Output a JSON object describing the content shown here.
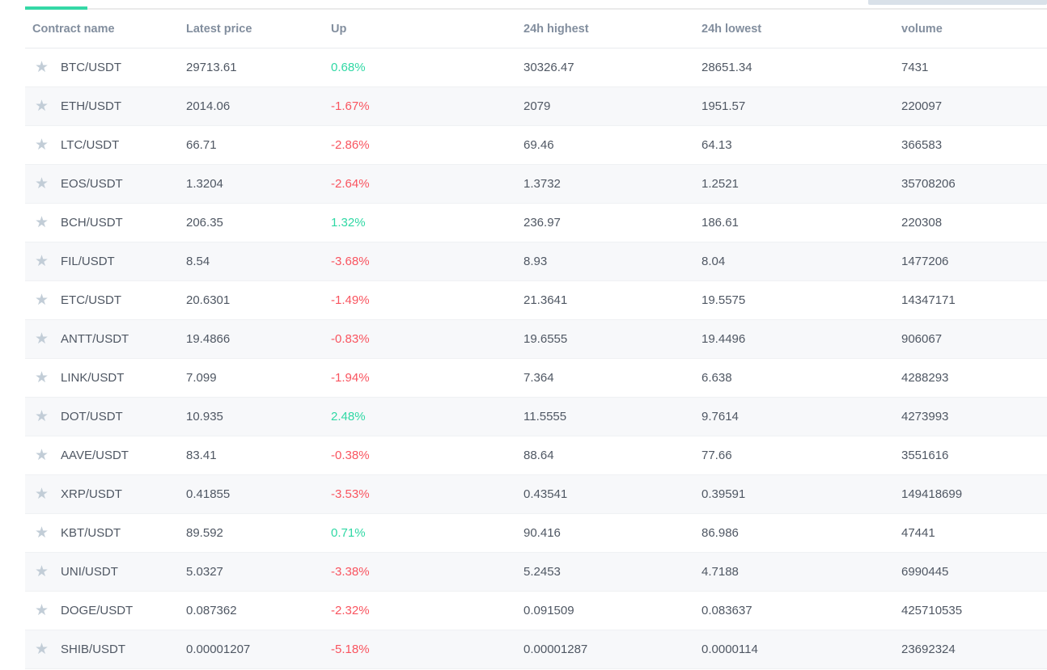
{
  "colors": {
    "accent_green": "#35d8a6",
    "positive_green": "#2fd8a4",
    "negative_red": "#f9545f",
    "star_gray": "#c2cdd7",
    "alt_row_bg": "#f7f8fa"
  },
  "icons": {
    "favorite_star": "★"
  },
  "table": {
    "columns": [
      "Contract name",
      "Latest price",
      "Up",
      "24h highest",
      "24h lowest",
      "volume"
    ],
    "rows": [
      {
        "name": "BTC/USDT",
        "price": "29713.61",
        "change": "0.68%",
        "direction": "up",
        "high": "30326.47",
        "low": "28651.34",
        "volume": "7431"
      },
      {
        "name": "ETH/USDT",
        "price": "2014.06",
        "change": "-1.67%",
        "direction": "down",
        "high": "2079",
        "low": "1951.57",
        "volume": "220097"
      },
      {
        "name": "LTC/USDT",
        "price": "66.71",
        "change": "-2.86%",
        "direction": "down",
        "high": "69.46",
        "low": "64.13",
        "volume": "366583"
      },
      {
        "name": "EOS/USDT",
        "price": "1.3204",
        "change": "-2.64%",
        "direction": "down",
        "high": "1.3732",
        "low": "1.2521",
        "volume": "35708206"
      },
      {
        "name": "BCH/USDT",
        "price": "206.35",
        "change": "1.32%",
        "direction": "up",
        "high": "236.97",
        "low": "186.61",
        "volume": "220308"
      },
      {
        "name": "FIL/USDT",
        "price": "8.54",
        "change": "-3.68%",
        "direction": "down",
        "high": "8.93",
        "low": "8.04",
        "volume": "1477206"
      },
      {
        "name": "ETC/USDT",
        "price": "20.6301",
        "change": "-1.49%",
        "direction": "down",
        "high": "21.3641",
        "low": "19.5575",
        "volume": "14347171"
      },
      {
        "name": "ANTT/USDT",
        "price": "19.4866",
        "change": "-0.83%",
        "direction": "down",
        "high": "19.6555",
        "low": "19.4496",
        "volume": "906067"
      },
      {
        "name": "LINK/USDT",
        "price": "7.099",
        "change": "-1.94%",
        "direction": "down",
        "high": "7.364",
        "low": "6.638",
        "volume": "4288293"
      },
      {
        "name": "DOT/USDT",
        "price": "10.935",
        "change": "2.48%",
        "direction": "up",
        "high": "11.5555",
        "low": "9.7614",
        "volume": "4273993"
      },
      {
        "name": "AAVE/USDT",
        "price": "83.41",
        "change": "-0.38%",
        "direction": "down",
        "high": "88.64",
        "low": "77.66",
        "volume": "3551616"
      },
      {
        "name": "XRP/USDT",
        "price": "0.41855",
        "change": "-3.53%",
        "direction": "down",
        "high": "0.43541",
        "low": "0.39591",
        "volume": "149418699"
      },
      {
        "name": "KBT/USDT",
        "price": "89.592",
        "change": "0.71%",
        "direction": "up",
        "high": "90.416",
        "low": "86.986",
        "volume": "47441"
      },
      {
        "name": "UNI/USDT",
        "price": "5.0327",
        "change": "-3.38%",
        "direction": "down",
        "high": "5.2453",
        "low": "4.7188",
        "volume": "6990445"
      },
      {
        "name": "DOGE/USDT",
        "price": "0.087362",
        "change": "-2.32%",
        "direction": "down",
        "high": "0.091509",
        "low": "0.083637",
        "volume": "425710535"
      },
      {
        "name": "SHIB/USDT",
        "price": "0.00001207",
        "change": "-5.18%",
        "direction": "down",
        "high": "0.00001287",
        "low": "0.0000114",
        "volume": "23692324"
      }
    ]
  }
}
